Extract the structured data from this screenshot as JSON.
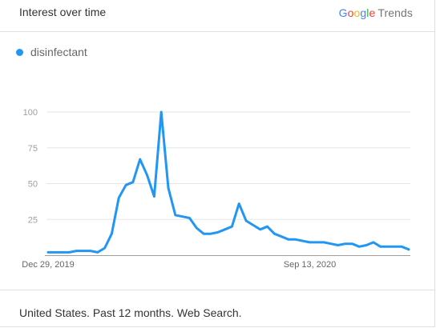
{
  "header": {
    "title": "Interest over time",
    "brand_google": [
      "G",
      "o",
      "o",
      "g",
      "l",
      "e"
    ],
    "brand_trends": "Trends"
  },
  "legend": {
    "series_name": "disinfectant",
    "color": "#2196F3"
  },
  "footer": {
    "text": "United States. Past 12 months. Web Search."
  },
  "chart_data": {
    "type": "line",
    "title": "",
    "xlabel": "",
    "ylabel": "",
    "ylim": [
      0,
      100
    ],
    "yticks": [
      25,
      50,
      75,
      100
    ],
    "grid": true,
    "x_tick_labels": [
      {
        "label": "Dec 29, 2019",
        "index": 0
      },
      {
        "label": "Sep 13, 2020",
        "index": 37
      }
    ],
    "series": [
      {
        "name": "disinfectant",
        "color": "#2196F3",
        "values": [
          2,
          2,
          2,
          2,
          3,
          3,
          3,
          2,
          5,
          15,
          40,
          49,
          51,
          67,
          56,
          41,
          100,
          47,
          28,
          27,
          26,
          19,
          15,
          15,
          16,
          18,
          20,
          36,
          24,
          21,
          18,
          20,
          15,
          13,
          11,
          11,
          10,
          9,
          9,
          9,
          8,
          7,
          8,
          8,
          6,
          7,
          9,
          6,
          6,
          6,
          6,
          4
        ]
      }
    ]
  }
}
